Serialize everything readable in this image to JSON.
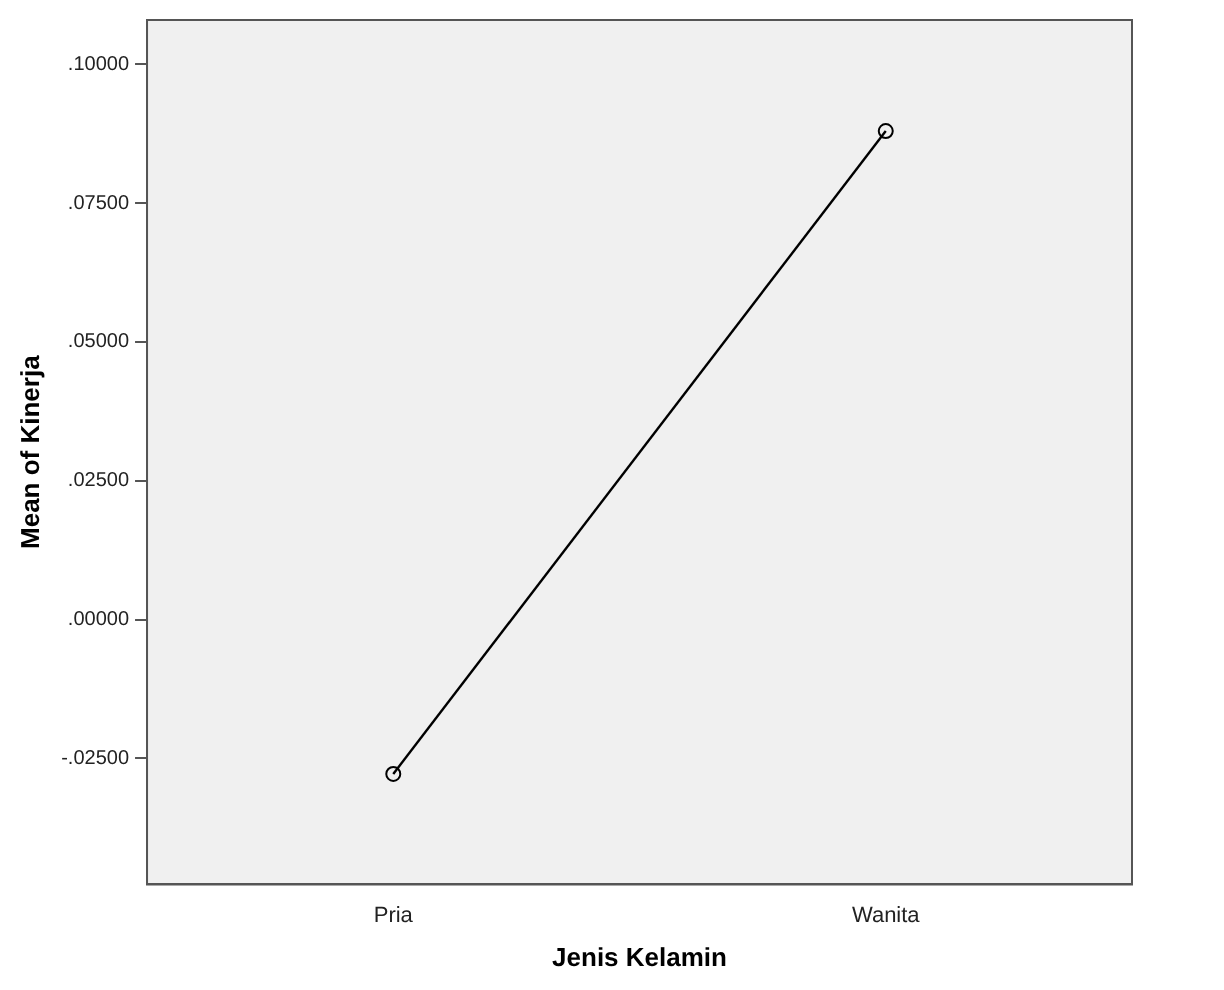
{
  "chart_data": {
    "type": "line",
    "xlabel": "Jenis Kelamin",
    "ylabel": "Mean of Kinerja",
    "categories": [
      "Pria",
      "Wanita"
    ],
    "series": [
      {
        "color": "#000000",
        "values": [
          -0.0278,
          0.088
        ]
      }
    ],
    "ylim": [
      -0.0477,
      0.108
    ],
    "yticks": [
      {
        "value": -0.025,
        "label": "-.02500"
      },
      {
        "value": 0,
        "label": ".00000"
      },
      {
        "value": 0.025,
        "label": ".02500"
      },
      {
        "value": 0.05,
        "label": ".05000"
      },
      {
        "value": 0.075,
        "label": ".07500"
      },
      {
        "value": 0.1,
        "label": ".10000"
      }
    ],
    "grid": false,
    "legend": false,
    "marker": "circle",
    "line_style": "solid"
  }
}
